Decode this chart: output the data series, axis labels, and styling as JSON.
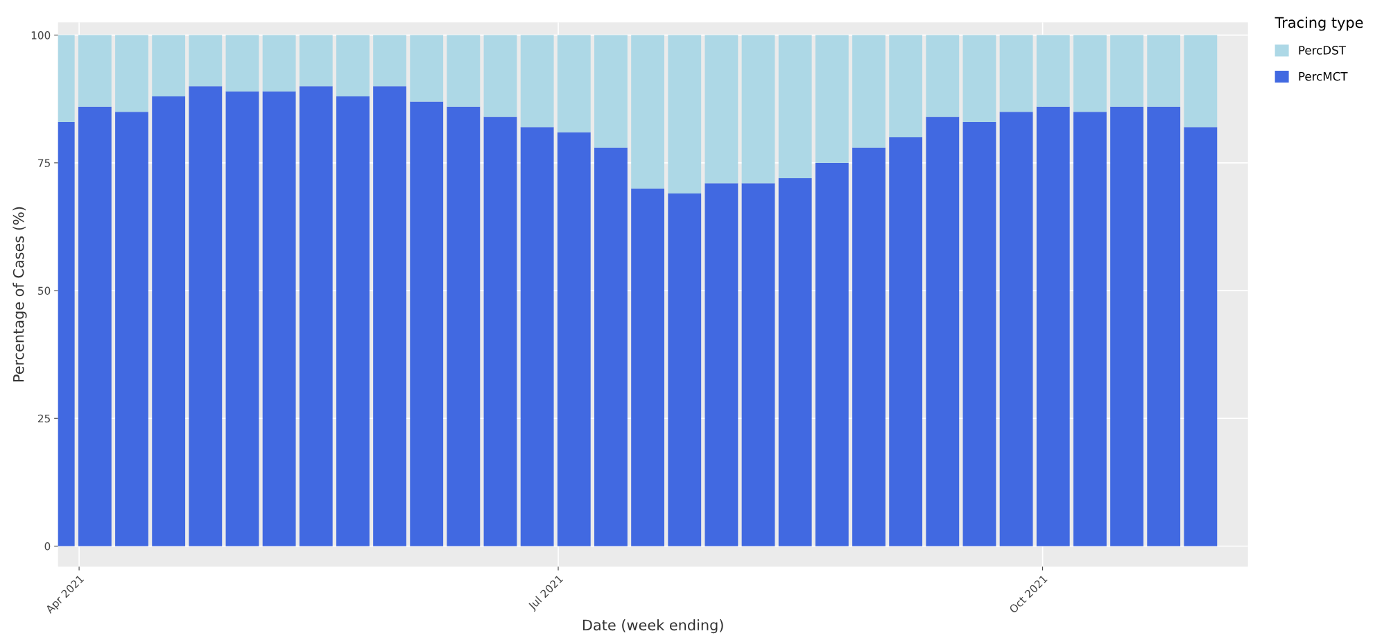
{
  "chart_data": {
    "type": "bar",
    "stacked": true,
    "xlabel": "Date (week ending)",
    "ylabel": "Percentage of Cases (%)",
    "legend_title": "Tracing type",
    "legend": "top right",
    "grid": true,
    "x": [
      "2021-03-28",
      "2021-04-04",
      "2021-04-11",
      "2021-04-18",
      "2021-04-25",
      "2021-05-02",
      "2021-05-09",
      "2021-05-16",
      "2021-05-23",
      "2021-05-30",
      "2021-06-06",
      "2021-06-13",
      "2021-06-20",
      "2021-06-27",
      "2021-07-04",
      "2021-07-11",
      "2021-07-18",
      "2021-07-25",
      "2021-08-01",
      "2021-08-08",
      "2021-08-15",
      "2021-08-22",
      "2021-08-29",
      "2021-09-05",
      "2021-09-12",
      "2021-09-19",
      "2021-09-26",
      "2021-10-03",
      "2021-10-10",
      "2021-10-17",
      "2021-10-24",
      "2021-10-31"
    ],
    "series": [
      {
        "name": "PercMCT",
        "color": "#4169e1",
        "values": [
          83,
          86,
          85,
          88,
          90,
          89,
          89,
          90,
          88,
          90,
          87,
          86,
          84,
          82,
          81,
          78,
          70,
          69,
          71,
          71,
          72,
          75,
          78,
          80,
          84,
          83,
          85,
          86,
          85,
          86,
          86,
          82
        ]
      },
      {
        "name": "PercDST",
        "color": "#add8e6",
        "values": [
          17,
          14,
          15,
          12,
          10,
          11,
          11,
          10,
          12,
          10,
          13,
          14,
          16,
          18,
          19,
          22,
          30,
          31,
          29,
          29,
          28,
          25,
          22,
          20,
          16,
          17,
          15,
          14,
          15,
          14,
          14,
          18
        ]
      }
    ],
    "xlim": [
      "2021-03-28",
      "2021-11-09"
    ],
    "xticks": [
      {
        "value": "2021-04-01",
        "label": "Apr 2021"
      },
      {
        "value": "2021-07-01",
        "label": "Jul 2021"
      },
      {
        "value": "2021-10-01",
        "label": "Oct 2021"
      }
    ],
    "ylim": [
      -4,
      102.5
    ],
    "yticks": [
      0,
      25,
      50,
      75,
      100
    ]
  }
}
